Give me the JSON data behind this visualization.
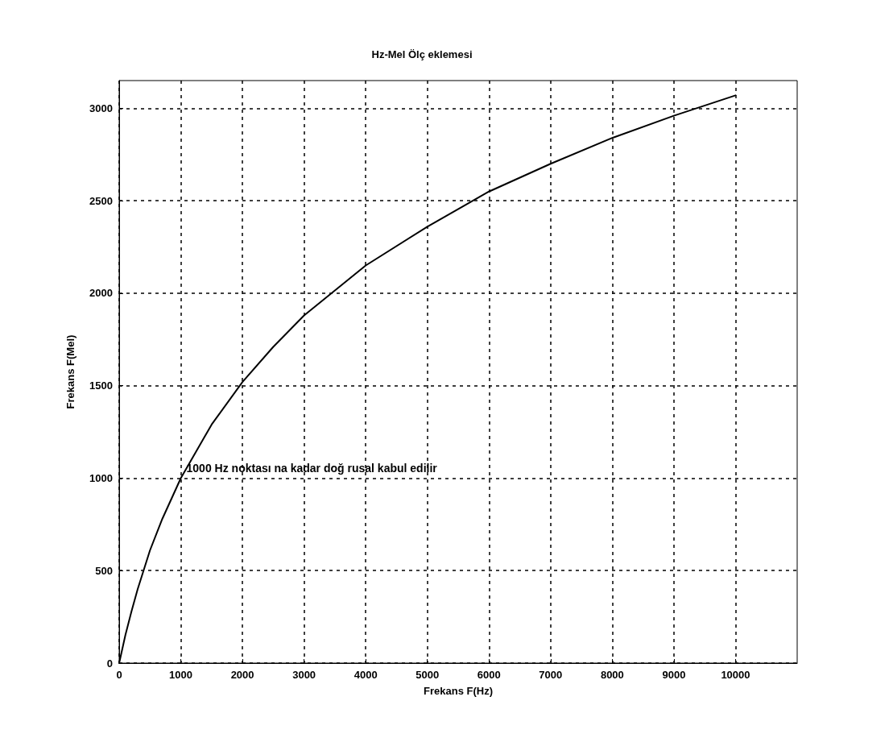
{
  "chart_data": {
    "type": "line",
    "title": "Hz-Mel Ölç eklemesi",
    "xlabel": "Frekans F(Hz)",
    "ylabel": "Frekans F(Mel)",
    "x": [
      0,
      100,
      200,
      300,
      500,
      700,
      1000,
      1500,
      2000,
      2500,
      3000,
      4000,
      5000,
      6000,
      7000,
      8000,
      9000,
      10000
    ],
    "series": [
      {
        "color": "#000000",
        "values": [
          0,
          150,
          280,
          400,
          610,
          780,
          1000,
          1290,
          1520,
          1710,
          1880,
          2150,
          2360,
          2550,
          2700,
          2840,
          2960,
          3070
        ]
      }
    ],
    "xlim": [
      0,
      11000
    ],
    "xticks": [
      0,
      1000,
      2000,
      3000,
      4000,
      5000,
      6000,
      7000,
      8000,
      9000,
      10000
    ],
    "ylim": [
      0,
      3150
    ],
    "yticks": [
      0,
      500,
      1000,
      1500,
      2000,
      2500,
      3000
    ],
    "grid": true,
    "marker": "none",
    "line_style": "solid",
    "annotations": [
      {
        "text": "1000 Hz noktası na kadar doğ rusal kabul edilir",
        "x": 1000,
        "y": 1000
      }
    ]
  }
}
